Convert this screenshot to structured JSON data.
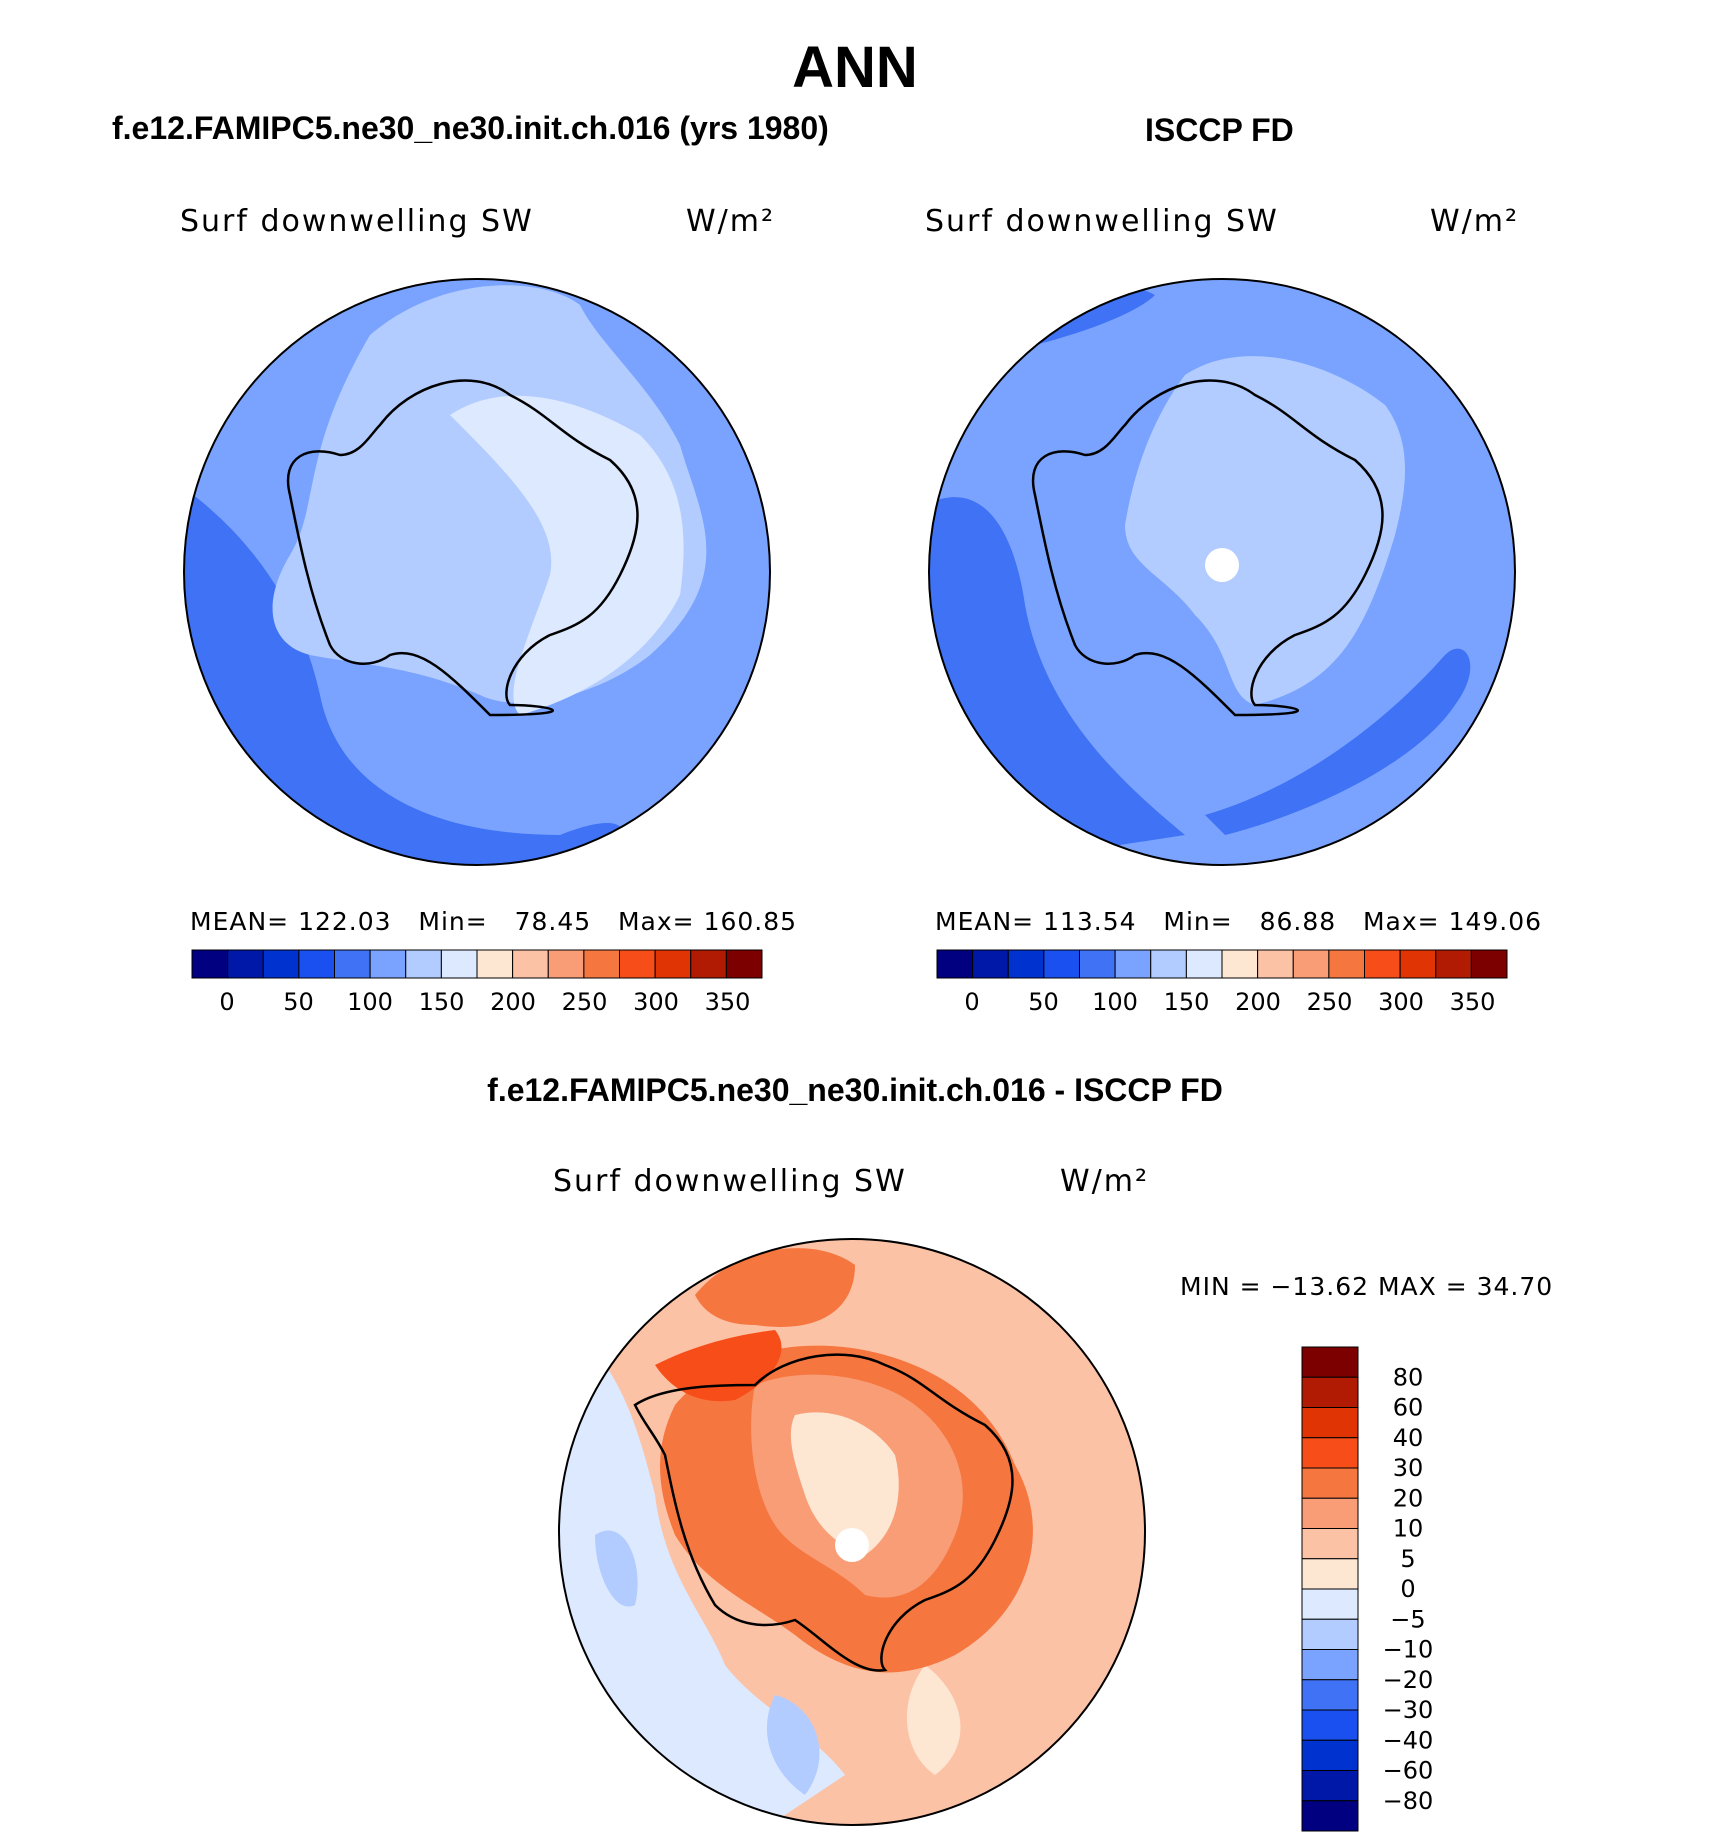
{
  "title": "ANN",
  "colors": {
    "blue_scale": [
      "#000080",
      "#0018a8",
      "#0032d0",
      "#1a4ff0",
      "#3f72f5",
      "#7aa3ff",
      "#b2ccff",
      "#dde9ff"
    ],
    "red_scale": [
      "#fde6d2",
      "#fcc2a6",
      "#f89d76",
      "#f67640",
      "#f74d18",
      "#e03405",
      "#b11a03",
      "#7d0000"
    ],
    "land_light": "#d7e7ff",
    "land_mid": "#b7d0ff",
    "ocean": "#7aa3ff",
    "ocean_deep": "#3f72f5"
  },
  "panels": [
    {
      "subtitle": "f.e12.FAMIPC5.ne30_ne30.init.ch.016 (yrs 1980)",
      "variable": "Surf  downwelling  SW",
      "units": "W/m²",
      "stats": {
        "mean_label": "MEAN=",
        "mean": "122.03",
        "min_label": "Min=",
        "min": "78.45",
        "max_label": "Max=",
        "max": "160.85"
      }
    },
    {
      "subtitle": "ISCCP FD",
      "variable": "Surf  downwelling  SW",
      "units": "W/m²",
      "stats": {
        "mean_label": "MEAN=",
        "mean": "113.54",
        "min_label": "Min=",
        "min": "86.88",
        "max_label": "Max=",
        "max": "149.06"
      }
    }
  ],
  "colorbar_labels": [
    "0",
    "50",
    "100",
    "150",
    "200",
    "250",
    "300",
    "350"
  ],
  "diff": {
    "subtitle": "f.e12.FAMIPC5.ne30_ne30.init.ch.016 - ISCCP FD",
    "variable": "Surf  downwelling  SW",
    "units": "W/m²",
    "minmax": "MIN  =  −13.62  MAX  =    34.70",
    "colorbar_labels": [
      "80",
      "60",
      "40",
      "30",
      "20",
      "10",
      "5",
      "0",
      "−5",
      "−10",
      "−20",
      "−30",
      "−40",
      "−60",
      "−80"
    ],
    "colorbar_colors": [
      "#7d0000",
      "#b11a03",
      "#e03405",
      "#f74d18",
      "#f67640",
      "#f89d76",
      "#fcc2a6",
      "#fde6d2",
      "#dde9ff",
      "#b2ccff",
      "#7aa3ff",
      "#3f72f5",
      "#1a4ff0",
      "#0032d0",
      "#0018a8",
      "#000080"
    ]
  }
}
